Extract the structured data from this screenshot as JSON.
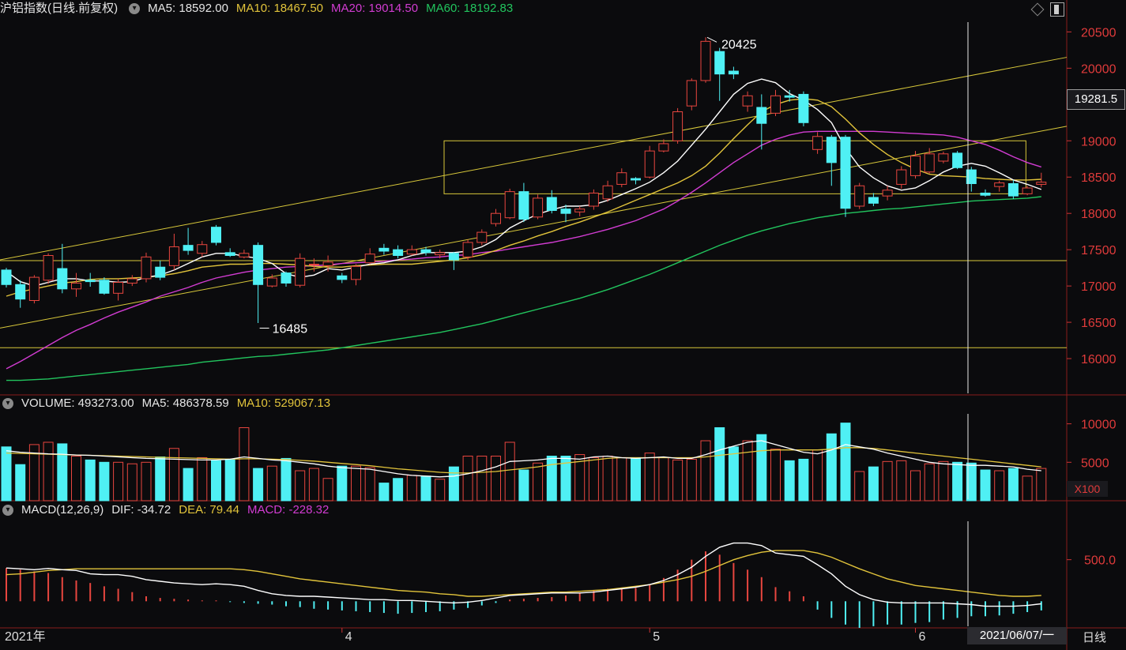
{
  "header_main": {
    "title": "沪铝指数(日线.前复权)",
    "ma5": "MA5: 18592.00",
    "ma10": "MA10: 18467.50",
    "ma20": "MA20: 19014.50",
    "ma60": "MA60: 18192.83"
  },
  "header_volume": {
    "title": "VOLUME: 493273.00",
    "ma5": "MA5: 486378.59",
    "ma10": "MA10: 529067.13"
  },
  "header_macd": {
    "title": "MACD(12,26,9)",
    "dif": "DIF: -34.72",
    "dea": "DEA: 79.44",
    "macd": "MACD: -228.32"
  },
  "price_box": "19281.5",
  "unit_label": "X100",
  "date_box": "2021/06/07/一",
  "period_label": "日线",
  "annotations": {
    "high": "20425",
    "low": "16485"
  },
  "colors": {
    "up": "#e8463f",
    "down": "#4ff0f4",
    "ma5": "#ffffff",
    "ma10": "#e2c43b",
    "ma20": "#d23cd2",
    "ma60": "#22c55e",
    "guide": "#d8c83a"
  },
  "chart_data": [
    {
      "type": "candlestick",
      "price_ticks": [
        "20500",
        "20000",
        "19500",
        "19000",
        "18500",
        "18000",
        "17500",
        "17000",
        "16500",
        "16000"
      ],
      "price_tick_values": [
        20500,
        20000,
        19500,
        19000,
        18500,
        18000,
        17500,
        17000,
        16500,
        16000
      ],
      "ylim": [
        15500,
        20700
      ],
      "x_labels": [
        {
          "label": "2021年",
          "index": 0
        },
        {
          "label": "4",
          "index": 24
        },
        {
          "label": "5",
          "index": 46
        },
        {
          "label": "6",
          "index": 65
        }
      ],
      "candles": [
        [
          17220,
          17020,
          17250,
          16980
        ],
        [
          17020,
          16820,
          17080,
          16700
        ],
        [
          16800,
          17120,
          17150,
          16760
        ],
        [
          17080,
          17420,
          17450,
          17030
        ],
        [
          17240,
          16960,
          17580,
          16900
        ],
        [
          16960,
          17040,
          17180,
          16850
        ],
        [
          17080,
          17060,
          17180,
          16990
        ],
        [
          17080,
          16900,
          17120,
          16880
        ],
        [
          16900,
          17050,
          17100,
          16800
        ],
        [
          17040,
          17100,
          17150,
          17000
        ],
        [
          17100,
          17400,
          17460,
          17050
        ],
        [
          17260,
          17120,
          17350,
          17080
        ],
        [
          17280,
          17540,
          17720,
          17220
        ],
        [
          17560,
          17490,
          17800,
          17430
        ],
        [
          17450,
          17570,
          17620,
          17400
        ],
        [
          17810,
          17600,
          17840,
          17560
        ],
        [
          17460,
          17420,
          17520,
          17400
        ],
        [
          17400,
          17450,
          17500,
          17380
        ],
        [
          17560,
          17020,
          17600,
          16490
        ],
        [
          17000,
          17110,
          17160,
          16980
        ],
        [
          17180,
          17040,
          17200,
          16990
        ],
        [
          17010,
          17380,
          17450,
          16980
        ],
        [
          17300,
          17300,
          17380,
          17200
        ],
        [
          17280,
          17330,
          17420,
          17200
        ],
        [
          17140,
          17090,
          17180,
          17040
        ],
        [
          17090,
          17270,
          17300,
          17010
        ],
        [
          17320,
          17440,
          17520,
          17300
        ],
        [
          17520,
          17480,
          17580,
          17430
        ],
        [
          17500,
          17420,
          17560,
          17380
        ],
        [
          17440,
          17500,
          17560,
          17420
        ],
        [
          17500,
          17460,
          17540,
          17420
        ],
        [
          17430,
          17460,
          17500,
          17380
        ],
        [
          17450,
          17360,
          17470,
          17220
        ],
        [
          17400,
          17600,
          17640,
          17360
        ],
        [
          17600,
          17740,
          17780,
          17560
        ],
        [
          17860,
          18000,
          18060,
          17820
        ],
        [
          17940,
          18300,
          18340,
          17920
        ],
        [
          18300,
          17920,
          18420,
          17880
        ],
        [
          17950,
          18210,
          18260,
          17920
        ],
        [
          18220,
          18040,
          18320,
          18000
        ],
        [
          18060,
          18000,
          18120,
          17880
        ],
        [
          18020,
          18060,
          18100,
          17960
        ],
        [
          18100,
          18280,
          18330,
          18050
        ],
        [
          18200,
          18380,
          18450,
          18160
        ],
        [
          18400,
          18560,
          18620,
          18360
        ],
        [
          18480,
          18460,
          18500,
          18400
        ],
        [
          18500,
          18860,
          18930,
          18480
        ],
        [
          18860,
          18960,
          19020,
          18840
        ],
        [
          19000,
          19400,
          19450,
          18960
        ],
        [
          19480,
          19830,
          19860,
          19420
        ],
        [
          19830,
          20370,
          20425,
          19800
        ],
        [
          20230,
          19920,
          20280,
          19550
        ],
        [
          19960,
          19920,
          20020,
          19850
        ],
        [
          19480,
          19620,
          19680,
          19400
        ],
        [
          19460,
          19240,
          19640,
          18880
        ],
        [
          19380,
          19620,
          19700,
          19340
        ],
        [
          19620,
          19600,
          19700,
          19540
        ],
        [
          19640,
          19250,
          19680,
          19200
        ],
        [
          18880,
          19060,
          19120,
          18820
        ],
        [
          19050,
          18700,
          19080,
          18380
        ],
        [
          19050,
          18070,
          19080,
          17950
        ],
        [
          18100,
          18380,
          18420,
          18060
        ],
        [
          18220,
          18140,
          18280,
          18100
        ],
        [
          18240,
          18320,
          18380,
          18180
        ],
        [
          18400,
          18600,
          18650,
          18340
        ],
        [
          18520,
          18790,
          18860,
          18480
        ],
        [
          18570,
          18820,
          18900,
          18550
        ],
        [
          18720,
          18820,
          18850,
          18690
        ],
        [
          18830,
          18630,
          18860,
          18610
        ],
        [
          18600,
          18410,
          18640,
          18300
        ],
        [
          18280,
          18250,
          18330,
          18230
        ],
        [
          18370,
          18420,
          18450,
          18300
        ],
        [
          18410,
          18240,
          18460,
          18200
        ],
        [
          18270,
          18350,
          18380,
          18250
        ],
        [
          18400,
          18430,
          18560,
          18360
        ]
      ],
      "ma5": [
        17200,
        17060,
        17000,
        17050,
        17100,
        17100,
        17070,
        17070,
        17050,
        17060,
        17120,
        17150,
        17220,
        17310,
        17400,
        17450,
        17450,
        17410,
        17380,
        17310,
        17170,
        17120,
        17150,
        17240,
        17220,
        17260,
        17300,
        17320,
        17360,
        17420,
        17460,
        17460,
        17460,
        17480,
        17540,
        17640,
        17800,
        17900,
        17990,
        18050,
        18100,
        18100,
        18120,
        18180,
        18260,
        18340,
        18430,
        18560,
        18720,
        18940,
        19160,
        19400,
        19640,
        19790,
        19850,
        19800,
        19650,
        19560,
        19430,
        19250,
        18900,
        18640,
        18490,
        18380,
        18320,
        18350,
        18450,
        18570,
        18650,
        18690,
        18650,
        18560,
        18460,
        18400,
        18330
      ],
      "ma10": [
        16860,
        16920,
        16960,
        17000,
        17040,
        17060,
        17090,
        17100,
        17100,
        17110,
        17120,
        17140,
        17170,
        17210,
        17260,
        17280,
        17300,
        17300,
        17310,
        17310,
        17300,
        17290,
        17270,
        17260,
        17260,
        17280,
        17290,
        17300,
        17300,
        17300,
        17320,
        17340,
        17360,
        17390,
        17430,
        17490,
        17560,
        17620,
        17690,
        17750,
        17820,
        17880,
        17950,
        18020,
        18100,
        18180,
        18260,
        18340,
        18420,
        18520,
        18650,
        18830,
        19030,
        19220,
        19400,
        19500,
        19560,
        19580,
        19560,
        19470,
        19300,
        19110,
        18950,
        18810,
        18700,
        18610,
        18540,
        18520,
        18510,
        18500,
        18480,
        18470,
        18460,
        18460,
        18470
      ],
      "ma20": [
        15860,
        15960,
        16070,
        16180,
        16290,
        16390,
        16470,
        16560,
        16640,
        16710,
        16780,
        16860,
        16920,
        16980,
        17050,
        17110,
        17150,
        17190,
        17220,
        17240,
        17260,
        17270,
        17280,
        17290,
        17310,
        17320,
        17330,
        17340,
        17360,
        17370,
        17390,
        17400,
        17420,
        17430,
        17460,
        17480,
        17510,
        17540,
        17570,
        17600,
        17640,
        17680,
        17730,
        17780,
        17840,
        17900,
        17980,
        18060,
        18170,
        18290,
        18420,
        18560,
        18700,
        18820,
        18940,
        19020,
        19080,
        19120,
        19130,
        19130,
        19130,
        19130,
        19130,
        19120,
        19110,
        19100,
        19090,
        19080,
        19050,
        19000,
        18950,
        18870,
        18780,
        18700,
        18640
      ],
      "ma60": [
        15700,
        15700,
        15710,
        15720,
        15740,
        15760,
        15780,
        15800,
        15820,
        15840,
        15860,
        15880,
        15900,
        15920,
        15950,
        15970,
        15990,
        16010,
        16030,
        16040,
        16060,
        16080,
        16100,
        16120,
        16150,
        16180,
        16210,
        16240,
        16270,
        16300,
        16330,
        16360,
        16400,
        16440,
        16480,
        16530,
        16580,
        16630,
        16680,
        16730,
        16780,
        16830,
        16890,
        16950,
        17020,
        17090,
        17160,
        17240,
        17320,
        17400,
        17480,
        17560,
        17630,
        17700,
        17760,
        17810,
        17860,
        17900,
        17940,
        17970,
        18000,
        18020,
        18040,
        18060,
        18070,
        18090,
        18110,
        18130,
        18150,
        18170,
        18180,
        18190,
        18200,
        18210,
        18230
      ]
    },
    {
      "type": "bar",
      "name": "VOLUME",
      "y_ticks": [
        "10000",
        "5000"
      ],
      "y_tick_values": [
        10000,
        5000
      ],
      "ylim": [
        0,
        11500
      ],
      "values": [
        7000,
        4700,
        7300,
        7600,
        7400,
        5800,
        5300,
        5000,
        5000,
        4800,
        5000,
        5700,
        6800,
        4200,
        5600,
        5200,
        5400,
        9500,
        4200,
        4500,
        5500,
        3900,
        4200,
        2900,
        4500,
        4500,
        4300,
        2300,
        2900,
        3300,
        3200,
        2800,
        4400,
        5800,
        5800,
        5800,
        7600,
        4000,
        4900,
        5800,
        5800,
        6000,
        5600,
        5800,
        5600,
        5600,
        6200,
        5600,
        5300,
        5400,
        7800,
        9500,
        7000,
        7800,
        8600,
        6700,
        5200,
        5400,
        6600,
        8700,
        10100,
        3800,
        4400,
        5100,
        5200,
        3900,
        4800,
        5100,
        5000,
        4900,
        4000,
        3900,
        4200,
        3200,
        4200
      ],
      "ma5": [
        6500,
        6300,
        6200,
        6100,
        6050,
        5950,
        5900,
        5800,
        5700,
        5600,
        5500,
        5450,
        5400,
        5350,
        5300,
        5300,
        5400,
        5700,
        5500,
        5300,
        5200,
        5000,
        4800,
        4500,
        4300,
        4200,
        4100,
        3800,
        3500,
        3300,
        3200,
        3100,
        3200,
        3500,
        3900,
        4400,
        5100,
        5200,
        5300,
        5500,
        5500,
        5400,
        5700,
        5800,
        5600,
        5500,
        5600,
        5700,
        5500,
        5500,
        6000,
        6600,
        7100,
        7600,
        7800,
        7300,
        6800,
        6300,
        6100,
        6600,
        7300,
        7000,
        6700,
        6200,
        5800,
        5400,
        5000,
        4800,
        4700,
        4600,
        4600,
        4500,
        4400,
        4100,
        3900
      ],
      "ma10": [
        6200,
        6150,
        6100,
        6050,
        6000,
        5950,
        5900,
        5850,
        5800,
        5750,
        5700,
        5650,
        5600,
        5550,
        5500,
        5450,
        5400,
        5450,
        5450,
        5400,
        5350,
        5250,
        5150,
        5000,
        4850,
        4700,
        4550,
        4350,
        4150,
        4000,
        3850,
        3700,
        3600,
        3600,
        3700,
        3800,
        4000,
        4200,
        4400,
        4700,
        4900,
        5100,
        5300,
        5500,
        5600,
        5600,
        5600,
        5600,
        5600,
        5600,
        5700,
        5900,
        6100,
        6300,
        6500,
        6600,
        6600,
        6600,
        6600,
        6700,
        6900,
        6900,
        6800,
        6600,
        6400,
        6200,
        6000,
        5800,
        5600,
        5400,
        5200,
        5000,
        4800,
        4600,
        4400
      ],
      "unit": "X100"
    },
    {
      "type": "line",
      "name": "MACD(12,26,9)",
      "y_ticks": [
        "500.0"
      ],
      "y_tick_values": [
        500
      ],
      "ylim": [
        -320,
        1000
      ],
      "dif": [
        400,
        390,
        380,
        395,
        380,
        370,
        330,
        320,
        320,
        300,
        260,
        240,
        220,
        210,
        200,
        210,
        200,
        180,
        130,
        90,
        70,
        60,
        60,
        50,
        40,
        30,
        20,
        20,
        10,
        10,
        0,
        -10,
        -20,
        -10,
        10,
        40,
        70,
        80,
        90,
        100,
        100,
        100,
        110,
        130,
        150,
        170,
        200,
        250,
        320,
        410,
        540,
        650,
        700,
        700,
        670,
        580,
        560,
        540,
        440,
        330,
        180,
        80,
        20,
        -10,
        -20,
        -20,
        -20,
        -20,
        -30,
        -40,
        -60,
        -60,
        -60,
        -50,
        -30
      ],
      "dea": [
        320,
        330,
        350,
        370,
        380,
        390,
        390,
        390,
        390,
        390,
        390,
        390,
        390,
        390,
        390,
        390,
        390,
        380,
        360,
        330,
        300,
        270,
        250,
        230,
        210,
        190,
        170,
        150,
        130,
        120,
        110,
        90,
        80,
        60,
        60,
        70,
        80,
        90,
        100,
        110,
        110,
        120,
        130,
        140,
        160,
        180,
        200,
        230,
        260,
        300,
        360,
        430,
        500,
        550,
        590,
        610,
        610,
        610,
        580,
        530,
        460,
        390,
        330,
        270,
        230,
        190,
        170,
        150,
        130,
        110,
        90,
        70,
        60,
        60,
        70
      ],
      "macd": [
        400,
        380,
        360,
        340,
        290,
        250,
        220,
        180,
        150,
        110,
        60,
        40,
        30,
        20,
        10,
        10,
        -10,
        -20,
        -30,
        -40,
        -60,
        -70,
        -90,
        -100,
        -110,
        -120,
        -130,
        -140,
        -150,
        -140,
        -130,
        -120,
        -100,
        -80,
        -50,
        -20,
        20,
        30,
        40,
        50,
        70,
        100,
        130,
        150,
        150,
        160,
        200,
        280,
        380,
        500,
        600,
        560,
        460,
        380,
        290,
        170,
        120,
        60,
        -100,
        -200,
        -280,
        -320,
        -300,
        -280,
        -280,
        -260,
        -250,
        -220,
        -200,
        -180,
        -180,
        -170,
        -150,
        -130,
        -110
      ]
    }
  ]
}
